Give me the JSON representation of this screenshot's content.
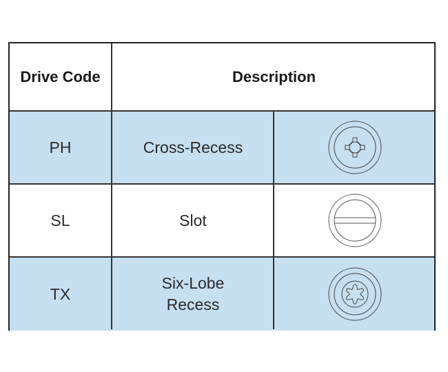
{
  "header": {
    "drive_code": "Drive Code",
    "description": "Description"
  },
  "rows": [
    {
      "code": "PH",
      "description": "Cross-Recess",
      "icon": "phillips-drive-icon"
    },
    {
      "code": "SL",
      "description": "Slot",
      "icon": "slotted-drive-icon"
    },
    {
      "code": "TX",
      "description": "Six-Lobe Recess",
      "icon": "torx-drive-icon"
    }
  ],
  "colors": {
    "row_highlight": "#c6dff1",
    "border": "#222222"
  }
}
